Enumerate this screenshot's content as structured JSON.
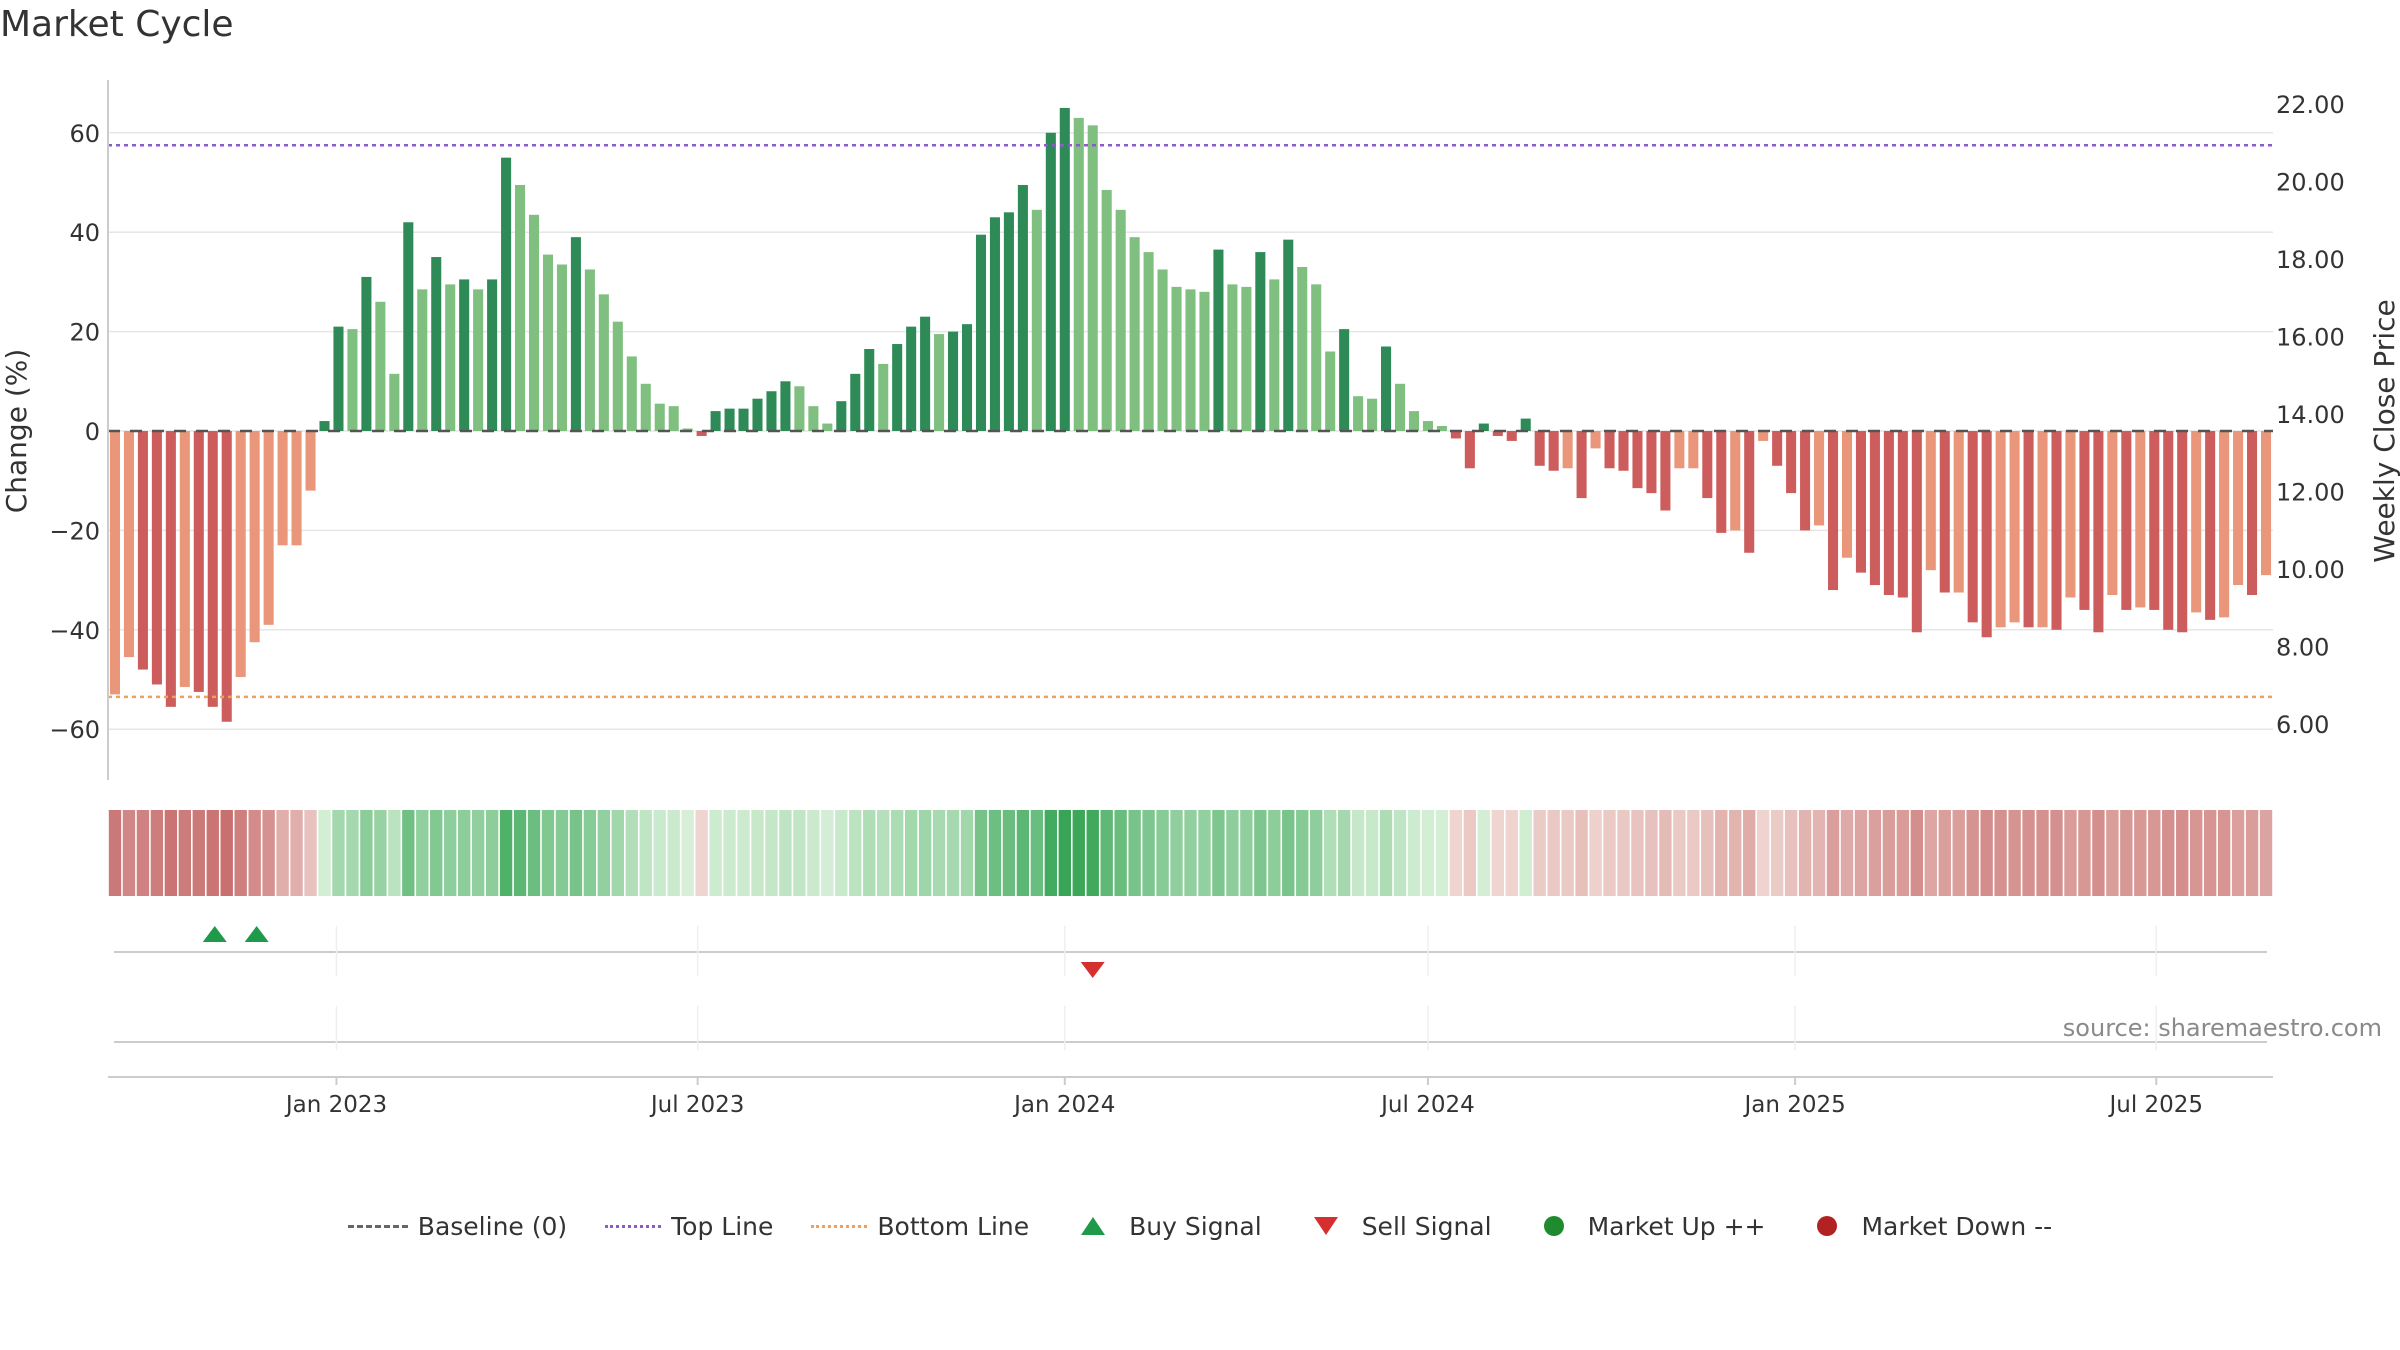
{
  "title": "Market Cycle",
  "source": "source: sharemaestro.com",
  "colors": {
    "up_strong": "#2e8b57",
    "up_light": "#7fbf7f",
    "down_strong": "#cd5c5c",
    "down_light": "#e9967a",
    "top_line": "#8b5cc7",
    "bottom_line": "#f0a05a",
    "buy": "#1f9a4a",
    "sell": "#d62f2f"
  },
  "chart_data": {
    "type": "bar",
    "title": "Market Cycle",
    "ylabel_left": "Change (%)",
    "ylabel_right": "Weekly Close Price",
    "left_ticks": [
      60,
      40,
      20,
      0,
      -20,
      -40,
      -60
    ],
    "left_tick_labels": [
      "60",
      "40",
      "20",
      "0",
      "−20",
      "−40",
      "−60"
    ],
    "right_ticks": [
      "22.00",
      "20.00",
      "18.00",
      "16.00",
      "14.00",
      "12.00",
      "10.00",
      "8.00",
      "6.00"
    ],
    "ylim_left": [
      -70,
      72
    ],
    "x_tick_labels": [
      "Jan 2023",
      "Jul 2023",
      "Jan 2024",
      "Jul 2024",
      "Jan 2025",
      "Jul 2025"
    ],
    "top_line": 57.5,
    "bottom_line": -53.5,
    "grid": true,
    "first_week": "2022-09-12",
    "series": [
      {
        "name": "Change (%)",
        "values": [
          -53,
          -45.5,
          -48,
          -51,
          -55.5,
          -51.5,
          -52.5,
          -55.5,
          -58.5,
          -49.5,
          -42.5,
          -39,
          -23,
          -23,
          -12,
          2,
          21,
          20.5,
          31,
          26,
          11.5,
          42,
          28.5,
          35,
          29.5,
          30.5,
          28.5,
          30.5,
          55,
          49.5,
          43.5,
          35.5,
          33.5,
          39,
          32.5,
          27.5,
          22,
          15,
          9.5,
          5.5,
          5,
          0.5,
          -1,
          4,
          4.5,
          4.5,
          6.5,
          8,
          10,
          9,
          5,
          1.5,
          6,
          11.5,
          16.5,
          13.5,
          17.5,
          21,
          23,
          19.5,
          20,
          21.5,
          39.5,
          43,
          44,
          49.5,
          44.5,
          60,
          65,
          63,
          61.5,
          48.5,
          44.5,
          39,
          36,
          32.5,
          29,
          28.5,
          28,
          36.5,
          29.5,
          29,
          36,
          30.5,
          38.5,
          33,
          29.5,
          16,
          20.5,
          7,
          6.5,
          17,
          9.5,
          4,
          2,
          1,
          -1.5,
          -7.5,
          1.5,
          -1,
          -2,
          2.5,
          -7,
          -8,
          -7.5,
          -13.5,
          -3.5,
          -7.5,
          -8,
          -11.5,
          -12.5,
          -16,
          -7.5,
          -7.5,
          -13.5,
          -20.5,
          -20,
          -24.5,
          -2,
          -7,
          -12.5,
          -20,
          -19,
          -32,
          -25.5,
          -28.5,
          -31,
          -33,
          -33.5,
          -40.5,
          -28,
          -32.5,
          -32.5,
          -38.5,
          -41.5,
          -39.5,
          -38.5,
          -39.5,
          -39.5,
          -40,
          -33.5,
          -36,
          -40.5,
          -33,
          -36,
          -35.5,
          -36,
          -40,
          -40.5,
          -36.5,
          -38,
          -37.5,
          -31,
          -33,
          -29
        ]
      }
    ],
    "buy_signals": [
      "2022-11-01",
      "2022-11-22"
    ],
    "sell_signals": [
      "2024-01-15"
    ],
    "legend": [
      "Baseline (0)",
      "Top Line",
      "Bottom Line",
      "Buy Signal",
      "Sell Signal",
      "Market Up ++",
      "Market Down --"
    ],
    "legend_position": "bottom-center"
  }
}
